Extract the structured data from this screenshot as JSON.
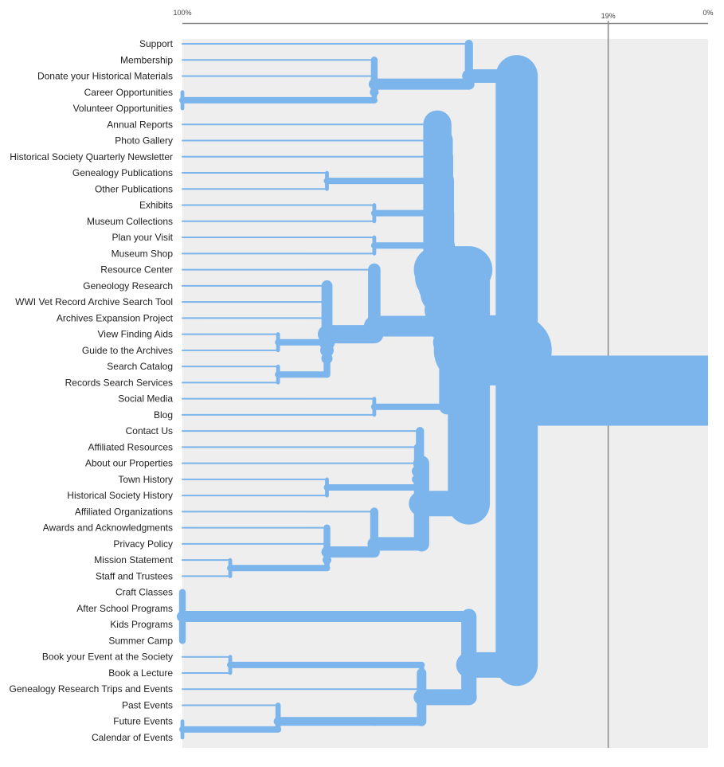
{
  "chart_data": {
    "type": "dendrogram",
    "title": "",
    "axis": {
      "start_label": "100%",
      "end_label": "0%",
      "marker_label": "19%",
      "marker_value": 19,
      "range": [
        100,
        0
      ]
    },
    "colors": {
      "link": "#7cb5ec",
      "plot_bg": "#eeeeee",
      "axis": "#888888",
      "marker": "#888888"
    },
    "leaves": [
      "Support",
      "Membership",
      "Donate your Historical Materials",
      "Career Opportunities",
      "Volunteer Opportunities",
      "Annual Reports",
      "Photo Gallery",
      "Historical Society Quarterly Newsletter",
      "Genealogy Publications",
      "Other Publications",
      "Exhibits",
      "Museum Collections",
      "Plan your Visit",
      "Museum Shop",
      "Resource Center",
      "Geneology Research",
      "WWI Vet Record Archive Search Tool",
      "Archives Expansion Project",
      "View Finding Aids",
      "Guide to the Archives",
      "Search Catalog",
      "Records Search Services",
      "Social Media",
      "Blog",
      "Contact Us",
      "Affiliated Resources",
      "About our Properties",
      "Town History",
      "Historical Society History",
      "Affiliated Organizations",
      "Awards and Acknowledgments",
      "Privacy Policy",
      "Mission Statement",
      "Staff and Trustees",
      "Craft Classes",
      "After School Programs",
      "Kids Programs",
      "Summer Camp",
      "Book your Event at the Society",
      "Book a Lecture",
      "Genealogy Research Trips and Events",
      "Past Events",
      "Future Events",
      "Calendar of Events"
    ],
    "merges": [
      {
        "id": "A",
        "children": [
          3,
          4
        ],
        "level": 100,
        "size": 2
      },
      {
        "id": "B",
        "children": [
          2,
          "A"
        ],
        "level": 63.5,
        "size": 3
      },
      {
        "id": "C",
        "children": [
          1,
          "B"
        ],
        "level": 63.5,
        "size": 4
      },
      {
        "id": "D",
        "children": [
          0,
          "C"
        ],
        "level": 45.5,
        "size": 5
      },
      {
        "id": "E",
        "children": [
          8,
          9
        ],
        "level": 72.5,
        "size": 2
      },
      {
        "id": "F",
        "children": [
          10,
          11
        ],
        "level": 63.5,
        "size": 2
      },
      {
        "id": "G",
        "children": [
          12,
          13
        ],
        "level": 63.5,
        "size": 2
      },
      {
        "id": "H",
        "children": [
          18,
          19
        ],
        "level": 81.8,
        "size": 2
      },
      {
        "id": "I",
        "children": [
          20,
          21
        ],
        "level": 81.8,
        "size": 2
      },
      {
        "id": "J",
        "children": [
          "H",
          "I"
        ],
        "level": 72.5,
        "size": 4
      },
      {
        "id": "K",
        "children": [
          17,
          "J"
        ],
        "level": 72.5,
        "size": 5
      },
      {
        "id": "L",
        "children": [
          16,
          "K"
        ],
        "level": 72.5,
        "size": 6
      },
      {
        "id": "M",
        "children": [
          15,
          "L"
        ],
        "level": 72.5,
        "size": 7
      },
      {
        "id": "N",
        "children": [
          14,
          "M"
        ],
        "level": 63.5,
        "size": 8
      },
      {
        "id": "O",
        "children": [
          22,
          23
        ],
        "level": 63.5,
        "size": 2
      },
      {
        "id": "P",
        "children": [
          "N",
          "O"
        ],
        "level": 49.7,
        "size": 10
      },
      {
        "id": "Q",
        "children": [
          "G",
          "P"
        ],
        "level": 49.9,
        "size": 12
      },
      {
        "id": "R",
        "children": [
          "F",
          "Q"
        ],
        "level": 50.3,
        "size": 14
      },
      {
        "id": "S",
        "children": [
          "E",
          "R"
        ],
        "level": 50.6,
        "size": 16
      },
      {
        "id": "T",
        "children": [
          7,
          "S"
        ],
        "level": 50.9,
        "size": 17
      },
      {
        "id": "U",
        "children": [
          6,
          "T"
        ],
        "level": 51.1,
        "size": 18
      },
      {
        "id": "V",
        "children": [
          5,
          "U"
        ],
        "level": 51.5,
        "size": 19
      },
      {
        "id": "W",
        "children": [
          27,
          28
        ],
        "level": 72.5,
        "size": 2
      },
      {
        "id": "X",
        "children": [
          26,
          "W"
        ],
        "level": 55.5,
        "size": 3
      },
      {
        "id": "Y",
        "children": [
          25,
          "X"
        ],
        "level": 55.3,
        "size": 4
      },
      {
        "id": "Z",
        "children": [
          24,
          "Y"
        ],
        "level": 54.8,
        "size": 5
      },
      {
        "id": "AA",
        "children": [
          32,
          33
        ],
        "level": 90.9,
        "size": 2
      },
      {
        "id": "AB",
        "children": [
          31,
          "AA"
        ],
        "level": 72.5,
        "size": 3
      },
      {
        "id": "AC",
        "children": [
          30,
          "AB"
        ],
        "level": 72.5,
        "size": 4
      },
      {
        "id": "AD",
        "children": [
          29,
          "AC"
        ],
        "level": 63.5,
        "size": 5
      },
      {
        "id": "AE",
        "children": [
          "Z",
          "AD"
        ],
        "level": 54.5,
        "size": 10
      },
      {
        "id": "AF",
        "children": [
          "V",
          "AE"
        ],
        "level": 45.5,
        "size": 29
      },
      {
        "id": "AG",
        "children": [
          34,
          35,
          36,
          37
        ],
        "level": 100,
        "size": 4
      },
      {
        "id": "AH",
        "children": [
          38,
          39
        ],
        "level": 90.9,
        "size": 2
      },
      {
        "id": "AI",
        "children": [
          40,
          "AH"
        ],
        "level": 54.5,
        "size": 3
      },
      {
        "id": "AJ",
        "children": [
          42,
          43
        ],
        "level": 100,
        "size": 2
      },
      {
        "id": "AK",
        "children": [
          41,
          "AJ"
        ],
        "level": 81.8,
        "size": 3
      },
      {
        "id": "AL",
        "children": [
          "AK"
        ],
        "level": 63.5,
        "size": 3
      },
      {
        "id": "AM",
        "children": [
          "AI",
          "AL"
        ],
        "level": 54.5,
        "size": 6
      },
      {
        "id": "AN",
        "children": [
          "AG",
          "AM"
        ],
        "level": 45.5,
        "size": 10
      },
      {
        "id": "ROOT",
        "children": [
          "D",
          "AF",
          "AN"
        ],
        "level": 36.4,
        "size": 44
      }
    ]
  }
}
